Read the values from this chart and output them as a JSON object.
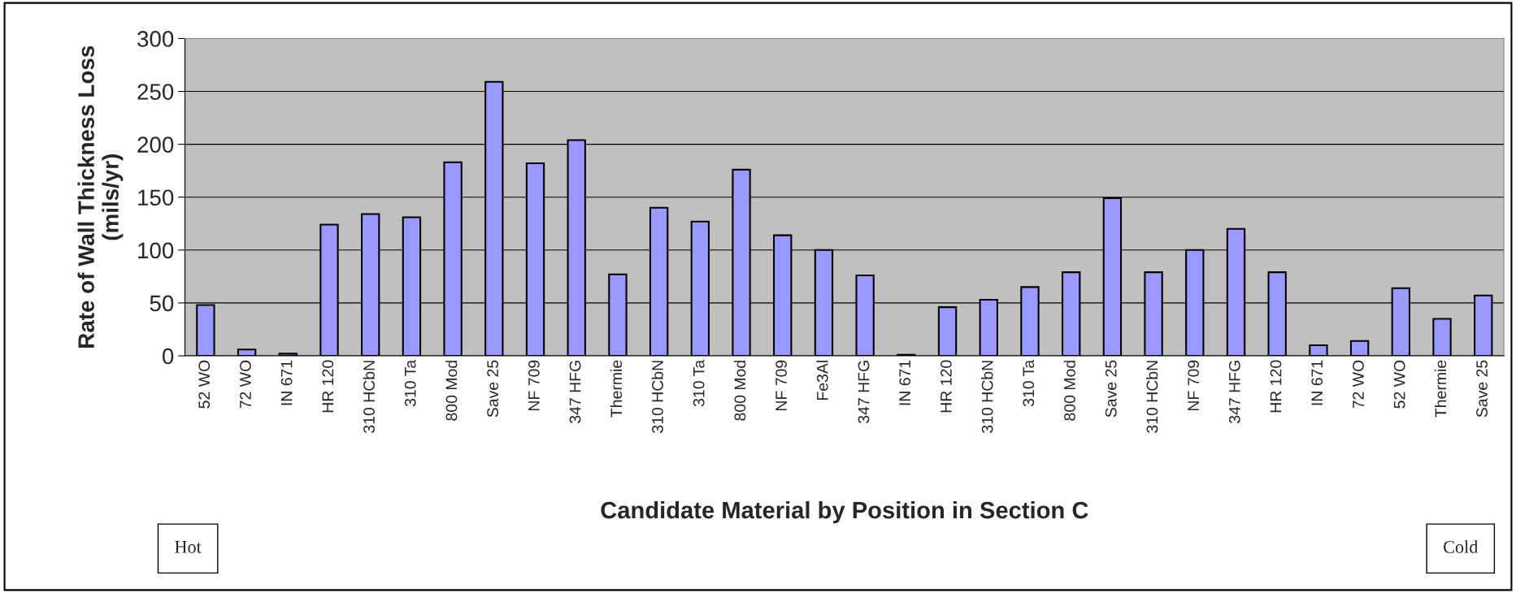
{
  "chart_data": {
    "type": "bar",
    "xlabel": "Candidate Material by Position in Section C",
    "ylabel": "Rate of Wall Thickness Loss\n(mils/yr)",
    "categories": [
      "52 WO",
      "72 WO",
      "IN 671",
      "HR 120",
      "310 HCbN",
      "310 Ta",
      "800 Mod",
      "Save 25",
      "NF 709",
      "347 HFG",
      "Thermie",
      "310 HCbN",
      "310 Ta",
      "800 Mod",
      "NF 709",
      "Fe3Al",
      "347 HFG",
      "IN 671",
      "HR 120",
      "310 HCbN",
      "310 Ta",
      "800 Mod",
      "Save 25",
      "310 HCbN",
      "NF 709",
      "347 HFG",
      "HR 120",
      "IN 671",
      "72 WO",
      "52 WO",
      "Thermie",
      "Save 25"
    ],
    "values": [
      48,
      6,
      2,
      124,
      134,
      131,
      183,
      259,
      182,
      204,
      77,
      140,
      127,
      176,
      114,
      100,
      76,
      1,
      46,
      53,
      65,
      79,
      149,
      79,
      100,
      120,
      79,
      10,
      14,
      64,
      35,
      57
    ],
    "color": "#9999ff",
    "ylim": [
      0,
      300
    ],
    "yticks": [
      0,
      50,
      100,
      150,
      200,
      250,
      300
    ],
    "grid": "y",
    "annotations": [
      "Hot",
      "Cold"
    ]
  }
}
